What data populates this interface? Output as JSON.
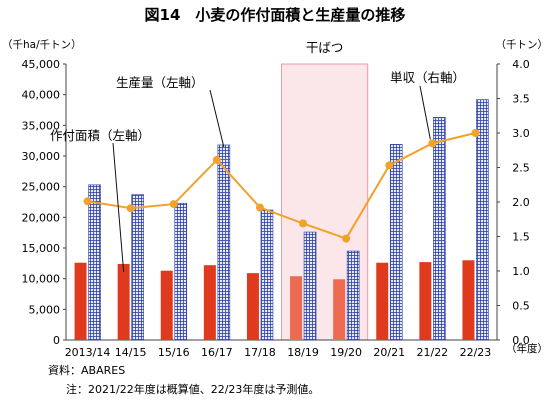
{
  "chart_data": {
    "type": "bar+line",
    "title": "図14　小麦の作付面積と生産量の推移",
    "left_unit": "（千ha/千トン）",
    "right_unit": "（千トン）",
    "x_unit": "（年度）",
    "categories": [
      "2013/14",
      "14/15",
      "15/16",
      "16/17",
      "17/18",
      "18/19",
      "19/20",
      "20/21",
      "21/22",
      "22/23"
    ],
    "left_axis": {
      "min": 0,
      "max": 45000,
      "ticks": [
        "0",
        "5,000",
        "10,000",
        "15,000",
        "20,000",
        "25,000",
        "30,000",
        "35,000",
        "40,000",
        "45,000"
      ]
    },
    "right_axis": {
      "min": 0,
      "max": 4.0,
      "ticks": [
        "0.0",
        "0.5",
        "1.0",
        "1.5",
        "2.0",
        "2.5",
        "3.0",
        "3.5",
        "4.0"
      ]
    },
    "series": [
      {
        "name": "作付面積（左軸）",
        "axis": "left",
        "kind": "bar",
        "values": [
          12600,
          12400,
          11300,
          12200,
          10900,
          10400,
          9900,
          12600,
          12700,
          13000
        ]
      },
      {
        "name": "生産量（左軸）",
        "axis": "left",
        "kind": "bar",
        "values": [
          25300,
          23700,
          22300,
          31800,
          21200,
          17600,
          14500,
          31900,
          36300,
          39200
        ]
      },
      {
        "name": "単収（右軸）",
        "axis": "right",
        "kind": "line",
        "values": [
          2.01,
          1.91,
          1.97,
          2.61,
          1.92,
          1.69,
          1.47,
          2.53,
          2.85,
          3.0
        ]
      }
    ],
    "drought": {
      "label": "干ばつ",
      "from_index": 5,
      "to_index": 6
    },
    "colors": {
      "area": "#e03a1e",
      "area_drought": "#ee6a52",
      "production": "#2c3f9f",
      "yield": "#f2a12a",
      "drought_band": "#fbe7ea"
    },
    "notes": [
      "資料：ABARES",
      "注：2021/22年度は概算値、22/23年度は予測値。"
    ]
  }
}
